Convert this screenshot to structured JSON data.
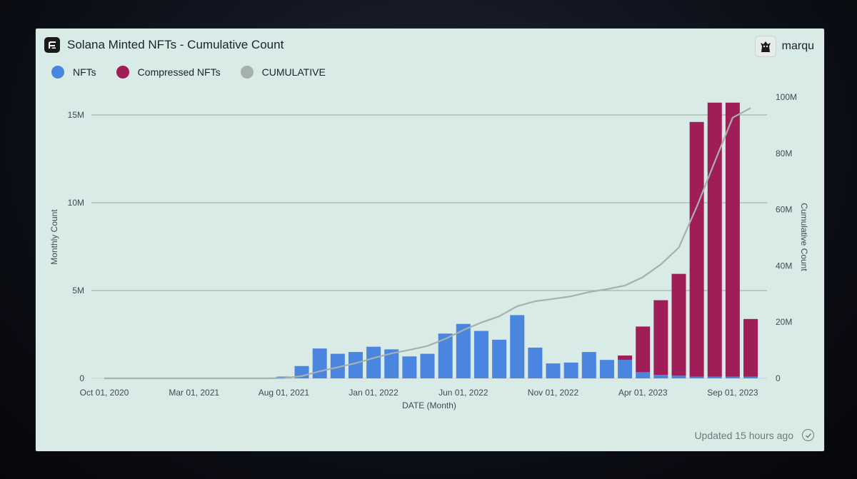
{
  "header": {
    "title": "Solana Minted NFTs - Cumulative Count"
  },
  "user": {
    "name": "marqu"
  },
  "footer": {
    "updated": "Updated 15 hours ago"
  },
  "colors": {
    "nfts": "#4a86e0",
    "compressed": "#a01e58",
    "cumulative": "#a6b1ae",
    "card": "#d8ebe6"
  },
  "icons": {
    "logo": "app-logo-icon",
    "avatar": "user-avatar",
    "status": "check-circle-icon"
  },
  "chart_data": {
    "type": "bar",
    "stacked": true,
    "grid": true,
    "legend_position": "top-left",
    "xlabel": "DATE (Month)",
    "ylabel": "Monthly Count",
    "y2label": "Cumulative Count",
    "ylim": [
      0,
      15700000
    ],
    "y2lim": [
      0,
      100000000
    ],
    "yticks": [
      0,
      5000000,
      10000000,
      15000000
    ],
    "ytick_labels": [
      "0",
      "5M",
      "10M",
      "15M"
    ],
    "y2ticks": [
      0,
      20000000,
      40000000,
      60000000,
      80000000,
      100000000
    ],
    "y2tick_labels": [
      "0",
      "20M",
      "40M",
      "60M",
      "80M",
      "100M"
    ],
    "xtick_labels": [
      "Oct 01, 2020",
      "Mar 01, 2021",
      "Aug 01, 2021",
      "Jan 01, 2022",
      "Jun 01, 2022",
      "Nov 01, 2022",
      "Apr 01, 2023",
      "Sep 01, 2023"
    ],
    "categories": [
      "2020-10",
      "2020-11",
      "2020-12",
      "2021-01",
      "2021-02",
      "2021-03",
      "2021-04",
      "2021-05",
      "2021-06",
      "2021-07",
      "2021-08",
      "2021-09",
      "2021-10",
      "2021-11",
      "2021-12",
      "2022-01",
      "2022-02",
      "2022-03",
      "2022-04",
      "2022-05",
      "2022-06",
      "2022-07",
      "2022-08",
      "2022-09",
      "2022-10",
      "2022-11",
      "2022-12",
      "2023-01",
      "2023-02",
      "2023-03",
      "2023-04",
      "2023-05",
      "2023-06",
      "2023-07",
      "2023-08",
      "2023-09",
      "2023-10"
    ],
    "series": [
      {
        "name": "NFTs",
        "kind": "bar",
        "values": [
          0,
          0,
          0,
          0,
          0,
          0,
          0,
          0,
          0,
          0,
          100000,
          700000,
          1700000,
          1400000,
          1500000,
          1800000,
          1650000,
          1250000,
          1400000,
          2550000,
          3100000,
          2700000,
          2200000,
          3600000,
          1750000,
          850000,
          900000,
          1500000,
          1050000,
          1050000,
          350000,
          200000,
          150000,
          100000,
          100000,
          100000,
          100000
        ]
      },
      {
        "name": "Compressed NFTs",
        "kind": "bar",
        "values": [
          0,
          0,
          0,
          0,
          0,
          0,
          0,
          0,
          0,
          0,
          0,
          0,
          0,
          0,
          0,
          0,
          0,
          0,
          0,
          0,
          0,
          0,
          0,
          0,
          0,
          0,
          0,
          0,
          0,
          250000,
          2600000,
          4250000,
          5800000,
          14500000,
          15600000,
          15600000,
          3280000
        ]
      },
      {
        "name": "CUMULATIVE",
        "kind": "line",
        "axis": "right",
        "values": [
          0,
          0,
          0,
          0,
          0,
          0,
          0,
          0,
          0,
          0,
          100000,
          800000,
          2500000,
          3900000,
          5400000,
          7200000,
          8850000,
          10100000,
          11500000,
          14050000,
          17150000,
          19850000,
          22050000,
          25650000,
          27400000,
          28250000,
          29150000,
          30650000,
          31700000,
          33000000,
          36000000,
          40500000,
          46500000,
          61000000,
          77000000,
          92700000,
          96100000
        ]
      }
    ]
  }
}
